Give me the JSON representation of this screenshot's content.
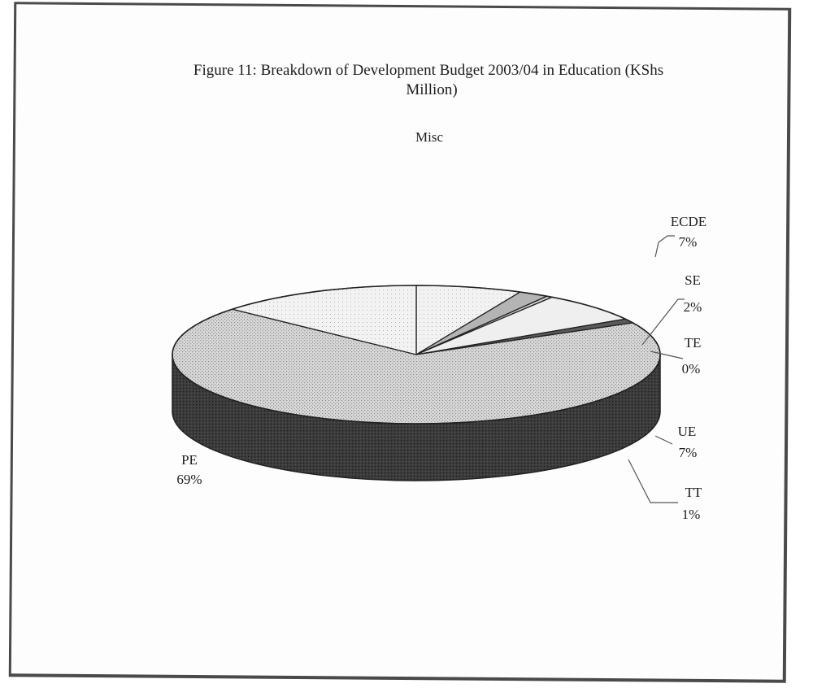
{
  "chart_data": {
    "type": "pie",
    "title": "Figure 11: Breakdown of Development Budget 2003/04 in Education (KShs",
    "title_line2": "Million)",
    "subtitle": "Misc",
    "three_d": true,
    "legend": "none",
    "slices": [
      {
        "label": "ECDE",
        "pct_label": "7%",
        "value": 7
      },
      {
        "label": "SE",
        "pct_label": "2%",
        "value": 2
      },
      {
        "label": "TE",
        "pct_label": "0%",
        "value": 0.4
      },
      {
        "label": "UE",
        "pct_label": "7%",
        "value": 7
      },
      {
        "label": "TT",
        "pct_label": "1%",
        "value": 1
      },
      {
        "label": "PE",
        "pct_label": "69%",
        "value": 69
      },
      {
        "label": "",
        "pct_label": "",
        "value": 13.6
      }
    ],
    "colors": {
      "top_light": "#ececec",
      "top_dotted": "#c4c4c4",
      "top_gray": "#a8a8a8",
      "side_dark": "#3a3a3a",
      "edge": "#222222",
      "leader": "#555555"
    }
  }
}
